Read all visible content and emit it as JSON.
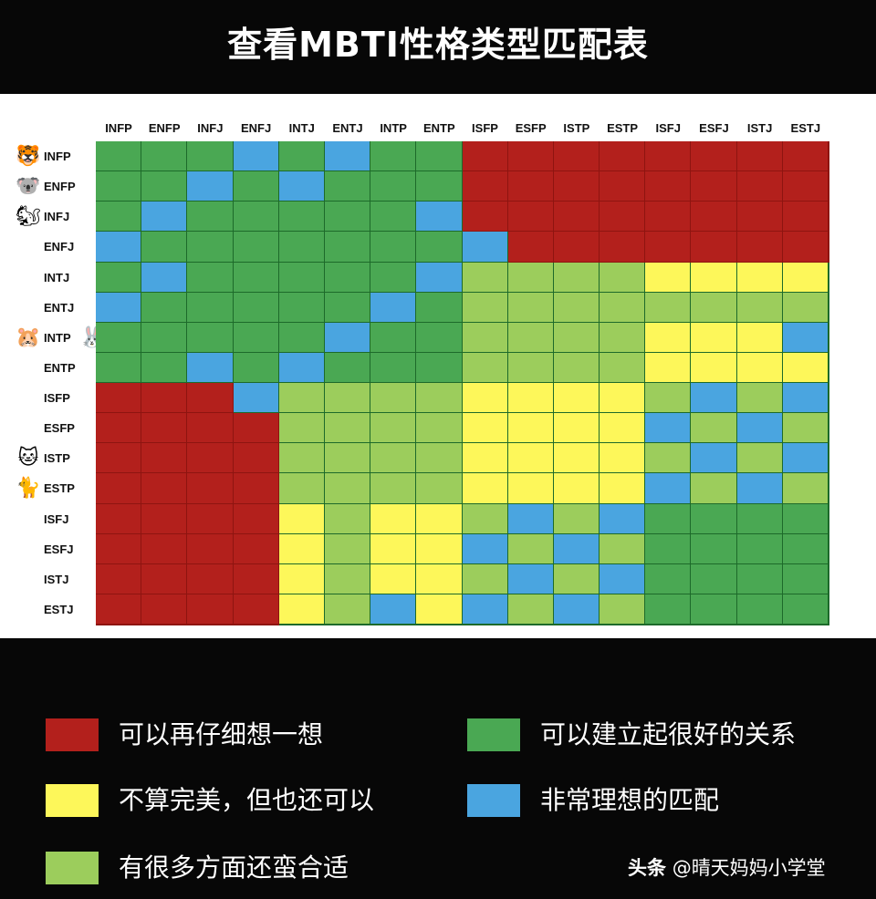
{
  "title": "查看MBTI性格类型匹配表",
  "watermark": {
    "brand": "头条",
    "account": "@晴天妈妈小学堂"
  },
  "chart_data": {
    "type": "heatmap",
    "columns": [
      "INFP",
      "ENFP",
      "INFJ",
      "ENFJ",
      "INTJ",
      "ENTJ",
      "INTP",
      "ENTP",
      "ISFP",
      "ESFP",
      "ISTP",
      "ESTP",
      "ISFJ",
      "ESFJ",
      "ISTJ",
      "ESTJ"
    ],
    "rows": [
      "INFP",
      "ENFP",
      "INFJ",
      "ENFJ",
      "INTJ",
      "ENTJ",
      "INTP",
      "ENTP",
      "ISFP",
      "ESFP",
      "ISTP",
      "ESTP",
      "ISFJ",
      "ESFJ",
      "ISTJ",
      "ESTJ"
    ],
    "row_icons": {
      "INFP": [
        "tiger-face"
      ],
      "ENFP": [
        "koala"
      ],
      "INFJ": [
        "chipmunk"
      ],
      "INTP": [
        "hamster",
        "rabbit-face"
      ],
      "ISTP": [
        "cat-face"
      ],
      "ESTP": [
        "cat"
      ]
    },
    "legend": [
      {
        "key": "R",
        "label": "可以再仔细想一想",
        "color": "#b3201c"
      },
      {
        "key": "G",
        "label": "可以建立起很好的关系",
        "color": "#4aa853"
      },
      {
        "key": "Y",
        "label": "不算完美，但也还可以",
        "color": "#fdf75a"
      },
      {
        "key": "B",
        "label": "非常理想的匹配",
        "color": "#4aa5e0"
      },
      {
        "key": "L",
        "label": "有很多方面还蛮合适",
        "color": "#9ccd5c"
      }
    ],
    "matrix": [
      [
        "G",
        "G",
        "G",
        "B",
        "G",
        "B",
        "G",
        "G",
        "R",
        "R",
        "R",
        "R",
        "R",
        "R",
        "R",
        "R"
      ],
      [
        "G",
        "G",
        "B",
        "G",
        "B",
        "G",
        "G",
        "G",
        "R",
        "R",
        "R",
        "R",
        "R",
        "R",
        "R",
        "R"
      ],
      [
        "G",
        "B",
        "G",
        "G",
        "G",
        "G",
        "G",
        "B",
        "R",
        "R",
        "R",
        "R",
        "R",
        "R",
        "R",
        "R"
      ],
      [
        "B",
        "G",
        "G",
        "G",
        "G",
        "G",
        "G",
        "G",
        "B",
        "R",
        "R",
        "R",
        "R",
        "R",
        "R",
        "R"
      ],
      [
        "G",
        "B",
        "G",
        "G",
        "G",
        "G",
        "G",
        "B",
        "L",
        "L",
        "L",
        "L",
        "Y",
        "Y",
        "Y",
        "Y"
      ],
      [
        "B",
        "G",
        "G",
        "G",
        "G",
        "G",
        "B",
        "G",
        "L",
        "L",
        "L",
        "L",
        "L",
        "L",
        "L",
        "L"
      ],
      [
        "G",
        "G",
        "G",
        "G",
        "G",
        "B",
        "G",
        "G",
        "L",
        "L",
        "L",
        "L",
        "Y",
        "Y",
        "Y",
        "B"
      ],
      [
        "G",
        "G",
        "B",
        "G",
        "B",
        "G",
        "G",
        "G",
        "L",
        "L",
        "L",
        "L",
        "Y",
        "Y",
        "Y",
        "Y"
      ],
      [
        "R",
        "R",
        "R",
        "B",
        "L",
        "L",
        "L",
        "L",
        "Y",
        "Y",
        "Y",
        "Y",
        "L",
        "B",
        "L",
        "B"
      ],
      [
        "R",
        "R",
        "R",
        "R",
        "L",
        "L",
        "L",
        "L",
        "Y",
        "Y",
        "Y",
        "Y",
        "B",
        "L",
        "B",
        "L"
      ],
      [
        "R",
        "R",
        "R",
        "R",
        "L",
        "L",
        "L",
        "L",
        "Y",
        "Y",
        "Y",
        "Y",
        "L",
        "B",
        "L",
        "B"
      ],
      [
        "R",
        "R",
        "R",
        "R",
        "L",
        "L",
        "L",
        "L",
        "Y",
        "Y",
        "Y",
        "Y",
        "B",
        "L",
        "B",
        "L"
      ],
      [
        "R",
        "R",
        "R",
        "R",
        "Y",
        "L",
        "Y",
        "Y",
        "L",
        "B",
        "L",
        "B",
        "G",
        "G",
        "G",
        "G"
      ],
      [
        "R",
        "R",
        "R",
        "R",
        "Y",
        "L",
        "Y",
        "Y",
        "B",
        "L",
        "B",
        "L",
        "G",
        "G",
        "G",
        "G"
      ],
      [
        "R",
        "R",
        "R",
        "R",
        "Y",
        "L",
        "Y",
        "Y",
        "L",
        "B",
        "L",
        "B",
        "G",
        "G",
        "G",
        "G"
      ],
      [
        "R",
        "R",
        "R",
        "R",
        "Y",
        "L",
        "B",
        "Y",
        "B",
        "L",
        "B",
        "L",
        "G",
        "G",
        "G",
        "G"
      ]
    ]
  }
}
